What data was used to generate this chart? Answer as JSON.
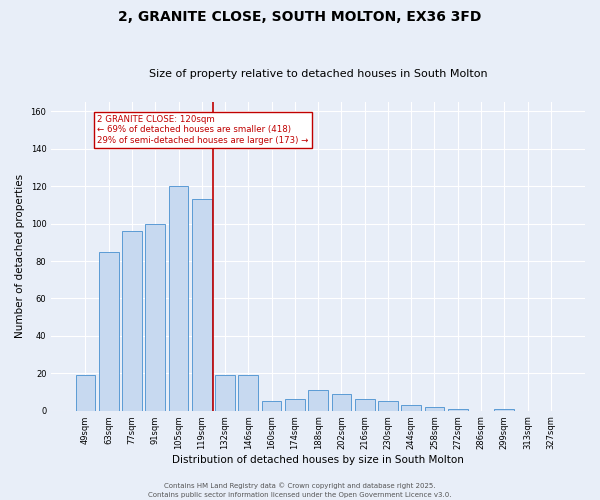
{
  "title": "2, GRANITE CLOSE, SOUTH MOLTON, EX36 3FD",
  "subtitle": "Size of property relative to detached houses in South Molton",
  "xlabel": "Distribution of detached houses by size in South Molton",
  "ylabel": "Number of detached properties",
  "bar_labels": [
    "49sqm",
    "63sqm",
    "77sqm",
    "91sqm",
    "105sqm",
    "119sqm",
    "132sqm",
    "146sqm",
    "160sqm",
    "174sqm",
    "188sqm",
    "202sqm",
    "216sqm",
    "230sqm",
    "244sqm",
    "258sqm",
    "272sqm",
    "286sqm",
    "299sqm",
    "313sqm",
    "327sqm"
  ],
  "bar_values": [
    19,
    85,
    96,
    100,
    120,
    113,
    19,
    19,
    5,
    6,
    11,
    9,
    6,
    5,
    3,
    2,
    1,
    0,
    1,
    0,
    0
  ],
  "bar_color": "#c7d9f0",
  "bar_edge_color": "#5b9bd5",
  "vline_x": 5.5,
  "vline_color": "#c00000",
  "ann_line1": "2 GRANITE CLOSE: 120sqm",
  "ann_line2": "← 69% of detached houses are smaller (418)",
  "ann_line3": "29% of semi-detached houses are larger (173) →",
  "annotation_box_color": "#c00000",
  "annotation_box_bg": "#ffffff",
  "footer1": "Contains HM Land Registry data © Crown copyright and database right 2025.",
  "footer2": "Contains public sector information licensed under the Open Government Licence v3.0.",
  "bg_color": "#e8eef8",
  "plot_bg_color": "#e8eef8",
  "grid_color": "#ffffff",
  "ylim": [
    0,
    165
  ],
  "yticks": [
    0,
    20,
    40,
    60,
    80,
    100,
    120,
    140,
    160
  ],
  "title_fontsize": 10,
  "subtitle_fontsize": 8,
  "axis_label_fontsize": 7.5,
  "tick_fontsize": 6,
  "footer_fontsize": 5
}
